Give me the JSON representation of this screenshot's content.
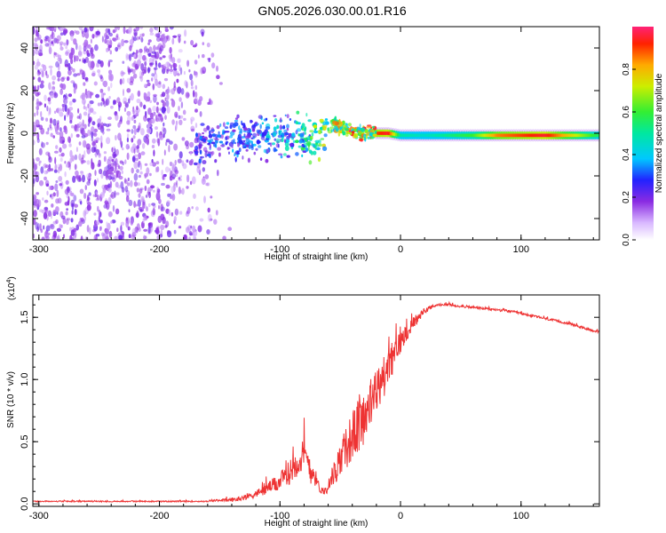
{
  "title": "GN05.2026.030.00.01.R16",
  "colors": {
    "snr_line": "#ee3333",
    "axis": "#000000"
  },
  "chart_data": [
    {
      "type": "heatmap",
      "name": "spectrogram",
      "xlabel": "Height of straight line (km)",
      "ylabel": "Frequency (Hz)",
      "xlim": [
        -305,
        165
      ],
      "ylim": [
        -50,
        50
      ],
      "xticks": [
        -300,
        -200,
        -100,
        0,
        100
      ],
      "xtick_labels": [
        "-300",
        "-200",
        "-100",
        "0",
        "100"
      ],
      "yticks": [
        -40,
        -20,
        0,
        20,
        40
      ],
      "ytick_labels": [
        "-40",
        "-20",
        "0",
        "20",
        "40"
      ],
      "noise_region_x": [
        -305,
        -140
      ],
      "signal_track": {
        "x": [
          -170,
          -150,
          -130,
          -110,
          -95,
          -80,
          -70,
          -60,
          -55,
          -50,
          -40,
          -30,
          -20,
          -10,
          0,
          20,
          60,
          80,
          120,
          165
        ],
        "y": [
          -6,
          -4,
          -3,
          -2,
          -1,
          -2,
          -3,
          2,
          4,
          3,
          1,
          0,
          0,
          0,
          -1,
          -1,
          -1,
          -1,
          -1,
          -1
        ],
        "peak_amplitude": [
          0.3,
          0.35,
          0.35,
          0.4,
          0.45,
          0.55,
          0.7,
          0.8,
          0.85,
          0.8,
          0.95,
          0.95,
          0.9,
          0.95,
          0.5,
          0.45,
          0.6,
          0.85,
          0.95,
          0.55
        ]
      },
      "colorbar": {
        "label": "Normalized spectral amplitude",
        "range": [
          0,
          1
        ],
        "ticks": [
          0.0,
          0.2,
          0.4,
          0.6,
          0.8
        ],
        "tick_labels": [
          "0.0",
          "0.2",
          "0.4",
          "0.6",
          "0.8"
        ]
      }
    },
    {
      "type": "line",
      "name": "snr",
      "xlabel": "Height of straight line (km)",
      "ylabel": "SNR (10 * v/v)",
      "multiplier": "(x10",
      "multiplier_exp": "4",
      "multiplier_close": ")",
      "xlim": [
        -305,
        165
      ],
      "ylim": [
        -0.02,
        1.68
      ],
      "xticks": [
        -300,
        -200,
        -100,
        0,
        100
      ],
      "xtick_labels": [
        "-300",
        "-200",
        "-100",
        "0",
        "100"
      ],
      "yticks": [
        0.0,
        0.5,
        1.0,
        1.5
      ],
      "ytick_labels": [
        "0.0",
        "0.5",
        "1.0",
        "1.5"
      ],
      "series": [
        {
          "name": "SNR",
          "x": [
            -305,
            -250,
            -200,
            -160,
            -150,
            -140,
            -130,
            -120,
            -115,
            -110,
            -105,
            -100,
            -95,
            -90,
            -85,
            -80,
            -75,
            -70,
            -67,
            -63,
            -60,
            -55,
            -50,
            -45,
            -40,
            -35,
            -30,
            -25,
            -20,
            -15,
            -10,
            -5,
            0,
            5,
            10,
            15,
            20,
            25,
            30,
            35,
            40,
            50,
            60,
            70,
            80,
            90,
            100,
            110,
            120,
            130,
            140,
            150,
            165
          ],
          "y": [
            0.02,
            0.02,
            0.02,
            0.02,
            0.03,
            0.03,
            0.05,
            0.08,
            0.1,
            0.13,
            0.15,
            0.18,
            0.22,
            0.28,
            0.35,
            0.38,
            0.3,
            0.2,
            0.12,
            0.1,
            0.15,
            0.25,
            0.35,
            0.45,
            0.55,
            0.62,
            0.7,
            0.8,
            0.9,
            1.0,
            1.1,
            1.2,
            1.3,
            1.38,
            1.45,
            1.5,
            1.55,
            1.58,
            1.6,
            1.6,
            1.6,
            1.59,
            1.58,
            1.57,
            1.56,
            1.55,
            1.53,
            1.51,
            1.49,
            1.47,
            1.45,
            1.42,
            1.38
          ],
          "noise_amplitude": [
            0.01,
            0.01,
            0.01,
            0.01,
            0.02,
            0.03,
            0.04,
            0.06,
            0.08,
            0.1,
            0.12,
            0.15,
            0.18,
            0.2,
            0.25,
            0.3,
            0.28,
            0.12,
            0.06,
            0.06,
            0.12,
            0.2,
            0.28,
            0.35,
            0.4,
            0.45,
            0.45,
            0.4,
            0.4,
            0.35,
            0.32,
            0.25,
            0.2,
            0.14,
            0.1,
            0.08,
            0.05,
            0.03,
            0.02,
            0.02,
            0.02,
            0.02,
            0.02,
            0.02,
            0.02,
            0.02,
            0.02,
            0.02,
            0.02,
            0.02,
            0.02,
            0.02,
            0.02
          ]
        }
      ]
    }
  ]
}
